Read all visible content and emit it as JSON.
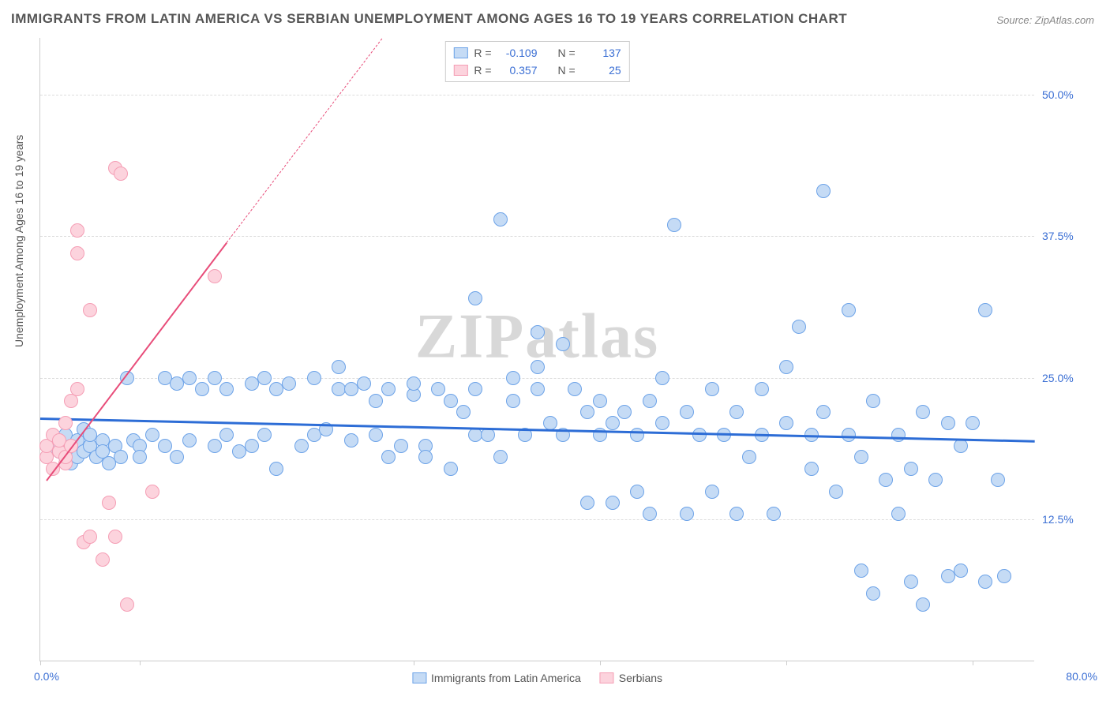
{
  "title": "IMMIGRANTS FROM LATIN AMERICA VS SERBIAN UNEMPLOYMENT AMONG AGES 16 TO 19 YEARS CORRELATION CHART",
  "source": "Source: ZipAtlas.com",
  "yaxis_label": "Unemployment Among Ages 16 to 19 years",
  "watermark": "ZIPatlas",
  "chart": {
    "type": "scatter",
    "xlim": [
      0,
      80
    ],
    "ylim": [
      0,
      55
    ],
    "xtick_left": "0.0%",
    "xtick_right": "80.0%",
    "xtick_positions": [
      0,
      8,
      30,
      45,
      60,
      75
    ],
    "ytick_values": [
      12.5,
      25.0,
      37.5,
      50.0
    ],
    "ytick_labels": [
      "12.5%",
      "25.0%",
      "37.5%",
      "50.0%"
    ],
    "grid_color": "#dddddd",
    "background_color": "#ffffff",
    "marker_radius": 9,
    "marker_stroke_width": 1.2,
    "series": [
      {
        "name": "Immigrants from Latin America",
        "fill": "#c5dbf5",
        "stroke": "#6da3e8",
        "trend_color": "#2d6dd6",
        "trend_width": 2.5,
        "trend": {
          "x1": 0,
          "y1": 21.5,
          "x2": 80,
          "y2": 19.5
        },
        "R_label": "R =",
        "R_value": "-0.109",
        "N_label": "N =",
        "N_value": "137",
        "points": [
          [
            1,
            19
          ],
          [
            1.5,
            18.5
          ],
          [
            2,
            18
          ],
          [
            2,
            20
          ],
          [
            2.5,
            19
          ],
          [
            2.5,
            17.5
          ],
          [
            3,
            19.5
          ],
          [
            3,
            18
          ],
          [
            3.5,
            18.5
          ],
          [
            3.5,
            20.5
          ],
          [
            4,
            19
          ],
          [
            4,
            20
          ],
          [
            4.5,
            18
          ],
          [
            5,
            19.5
          ],
          [
            5,
            18.5
          ],
          [
            5.5,
            17.5
          ],
          [
            6,
            19
          ],
          [
            6.5,
            18
          ],
          [
            7,
            25
          ],
          [
            7.5,
            19.5
          ],
          [
            8,
            19
          ],
          [
            8,
            18
          ],
          [
            9,
            20
          ],
          [
            10,
            25
          ],
          [
            10,
            19
          ],
          [
            11,
            24.5
          ],
          [
            11,
            18
          ],
          [
            12,
            25
          ],
          [
            12,
            19.5
          ],
          [
            13,
            24
          ],
          [
            14,
            19
          ],
          [
            14,
            25
          ],
          [
            15,
            20
          ],
          [
            15,
            24
          ],
          [
            16,
            18.5
          ],
          [
            17,
            24.5
          ],
          [
            17,
            19
          ],
          [
            18,
            25
          ],
          [
            18,
            20
          ],
          [
            19,
            24
          ],
          [
            19,
            17
          ],
          [
            20,
            24.5
          ],
          [
            21,
            19
          ],
          [
            22,
            25
          ],
          [
            22,
            20
          ],
          [
            23,
            20.5
          ],
          [
            24,
            24
          ],
          [
            24,
            26
          ],
          [
            25,
            19.5
          ],
          [
            25,
            24
          ],
          [
            26,
            24.5
          ],
          [
            27,
            23
          ],
          [
            27,
            20
          ],
          [
            28,
            18
          ],
          [
            28,
            24
          ],
          [
            29,
            19
          ],
          [
            30,
            23.5
          ],
          [
            30,
            24.5
          ],
          [
            31,
            19
          ],
          [
            31,
            18
          ],
          [
            32,
            24
          ],
          [
            33,
            17
          ],
          [
            33,
            23
          ],
          [
            34,
            22
          ],
          [
            35,
            20
          ],
          [
            35,
            24
          ],
          [
            35,
            32
          ],
          [
            36,
            20
          ],
          [
            37,
            18
          ],
          [
            37,
            39
          ],
          [
            38,
            23
          ],
          [
            38,
            25
          ],
          [
            39,
            20
          ],
          [
            40,
            24
          ],
          [
            40,
            26
          ],
          [
            40,
            29
          ],
          [
            41,
            21
          ],
          [
            42,
            20
          ],
          [
            42,
            28
          ],
          [
            43,
            24
          ],
          [
            44,
            22
          ],
          [
            44,
            14
          ],
          [
            45,
            20
          ],
          [
            45,
            23
          ],
          [
            46,
            21
          ],
          [
            46,
            14
          ],
          [
            47,
            22
          ],
          [
            48,
            20
          ],
          [
            48,
            15
          ],
          [
            49,
            23
          ],
          [
            49,
            13
          ],
          [
            50,
            21
          ],
          [
            50,
            25
          ],
          [
            51,
            38.5
          ],
          [
            52,
            22
          ],
          [
            52,
            13
          ],
          [
            53,
            20
          ],
          [
            54,
            24
          ],
          [
            54,
            15
          ],
          [
            55,
            20
          ],
          [
            56,
            22
          ],
          [
            56,
            13
          ],
          [
            57,
            18
          ],
          [
            58,
            20
          ],
          [
            58,
            24
          ],
          [
            59,
            13
          ],
          [
            60,
            21
          ],
          [
            60,
            26
          ],
          [
            61,
            29.5
          ],
          [
            62,
            20
          ],
          [
            62,
            17
          ],
          [
            63,
            22
          ],
          [
            63,
            41.5
          ],
          [
            64,
            15
          ],
          [
            65,
            20
          ],
          [
            65,
            31
          ],
          [
            66,
            18
          ],
          [
            66,
            8
          ],
          [
            67,
            23
          ],
          [
            67,
            6
          ],
          [
            68,
            16
          ],
          [
            69,
            20
          ],
          [
            69,
            13
          ],
          [
            70,
            17
          ],
          [
            70,
            7
          ],
          [
            71,
            5
          ],
          [
            71,
            22
          ],
          [
            72,
            16
          ],
          [
            73,
            7.5
          ],
          [
            73,
            21
          ],
          [
            74,
            19
          ],
          [
            74,
            8
          ],
          [
            75,
            21
          ],
          [
            76,
            31
          ],
          [
            76,
            7
          ],
          [
            77,
            16
          ],
          [
            77.5,
            7.5
          ]
        ]
      },
      {
        "name": "Serbians",
        "fill": "#fcd3dd",
        "stroke": "#f59eb5",
        "trend_color": "#e84d7a",
        "trend_width": 2,
        "trend": {
          "x1": 0.5,
          "y1": 16,
          "x2": 15,
          "y2": 37
        },
        "trend_dashed_extension": {
          "x1": 15,
          "y1": 37,
          "x2": 27.5,
          "y2": 55
        },
        "R_label": "R =",
        "R_value": "0.357",
        "N_label": "N =",
        "N_value": "25",
        "points": [
          [
            0.5,
            18
          ],
          [
            0.5,
            19
          ],
          [
            1,
            17
          ],
          [
            1,
            20
          ],
          [
            1.5,
            18.5
          ],
          [
            1.5,
            19.5
          ],
          [
            2,
            17.5
          ],
          [
            2,
            18
          ],
          [
            2,
            21
          ],
          [
            2.5,
            19
          ],
          [
            2.5,
            23
          ],
          [
            3,
            24
          ],
          [
            3,
            38
          ],
          [
            3,
            36
          ],
          [
            3.5,
            10.5
          ],
          [
            4,
            31
          ],
          [
            4,
            11
          ],
          [
            5,
            9
          ],
          [
            5.5,
            14
          ],
          [
            6,
            11
          ],
          [
            6,
            43.5
          ],
          [
            6.5,
            43
          ],
          [
            7,
            5
          ],
          [
            9,
            15
          ],
          [
            14,
            34
          ]
        ]
      }
    ]
  },
  "legend_bottom": {
    "items": [
      {
        "swatch_fill": "#c5dbf5",
        "swatch_stroke": "#6da3e8",
        "label": "Immigrants from Latin America"
      },
      {
        "swatch_fill": "#fcd3dd",
        "swatch_stroke": "#f59eb5",
        "label": "Serbians"
      }
    ]
  }
}
